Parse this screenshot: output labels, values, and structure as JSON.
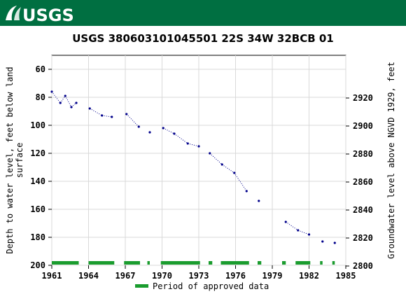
{
  "header": {
    "logo_text": "USGS",
    "brand_color": "#006f41"
  },
  "chart_data": {
    "type": "scatter",
    "title": "USGS 380603101045501 22S 34W 32BCB 01",
    "ylabel_left": "Depth to water level, feet below land surface",
    "ylabel_right": "Groundwater level above NGVD 1929, feet",
    "xlim": [
      1961,
      1985
    ],
    "ylim_left": [
      200,
      50
    ],
    "ylim_right": [
      2800.5,
      2950.5
    ],
    "x_ticks": [
      "1961",
      "1964",
      "1967",
      "1970",
      "1973",
      "1976",
      "1979",
      "1982",
      "1985"
    ],
    "y_ticks_left": [
      "60",
      "80",
      "100",
      "120",
      "140",
      "160",
      "180",
      "200"
    ],
    "y_ticks_right": [
      "2920",
      "2900",
      "2880",
      "2860",
      "2840",
      "2820",
      "2800"
    ],
    "series_color": "#00008b",
    "approved_color": "#1a9c2e",
    "points": [
      [
        1961.0,
        76
      ],
      [
        1961.7,
        84
      ],
      [
        1962.1,
        79
      ],
      [
        1962.6,
        87
      ],
      [
        1963.0,
        84
      ],
      [
        1964.1,
        88
      ],
      [
        1965.1,
        93
      ],
      [
        1965.9,
        94
      ],
      [
        1967.1,
        92
      ],
      [
        1968.1,
        101
      ],
      [
        1969.0,
        105
      ],
      [
        1970.1,
        102
      ],
      [
        1971.0,
        106
      ],
      [
        1972.1,
        113
      ],
      [
        1973.0,
        115
      ],
      [
        1973.9,
        120
      ],
      [
        1974.9,
        128
      ],
      [
        1975.9,
        134
      ],
      [
        1976.9,
        147
      ],
      [
        1977.9,
        154
      ],
      [
        1980.1,
        169
      ],
      [
        1981.1,
        175
      ],
      [
        1982.0,
        178
      ],
      [
        1983.1,
        183
      ],
      [
        1984.1,
        184
      ]
    ],
    "connected_segments": [
      [
        0,
        4
      ],
      [
        5,
        7
      ],
      [
        8,
        9
      ],
      [
        11,
        14
      ],
      [
        15,
        18
      ],
      [
        20,
        22
      ]
    ],
    "approved_periods": [
      [
        1961.0,
        1963.2
      ],
      [
        1964.0,
        1966.1
      ],
      [
        1966.9,
        1968.2
      ],
      [
        1968.8,
        1969.0
      ],
      [
        1969.9,
        1973.1
      ],
      [
        1973.8,
        1974.1
      ],
      [
        1974.8,
        1977.1
      ],
      [
        1977.8,
        1978.1
      ],
      [
        1979.8,
        1980.1
      ],
      [
        1980.9,
        1982.1
      ],
      [
        1982.9,
        1983.1
      ],
      [
        1983.9,
        1984.1
      ]
    ],
    "legend": {
      "label": "Period of approved data",
      "position": "bottom-center"
    }
  }
}
